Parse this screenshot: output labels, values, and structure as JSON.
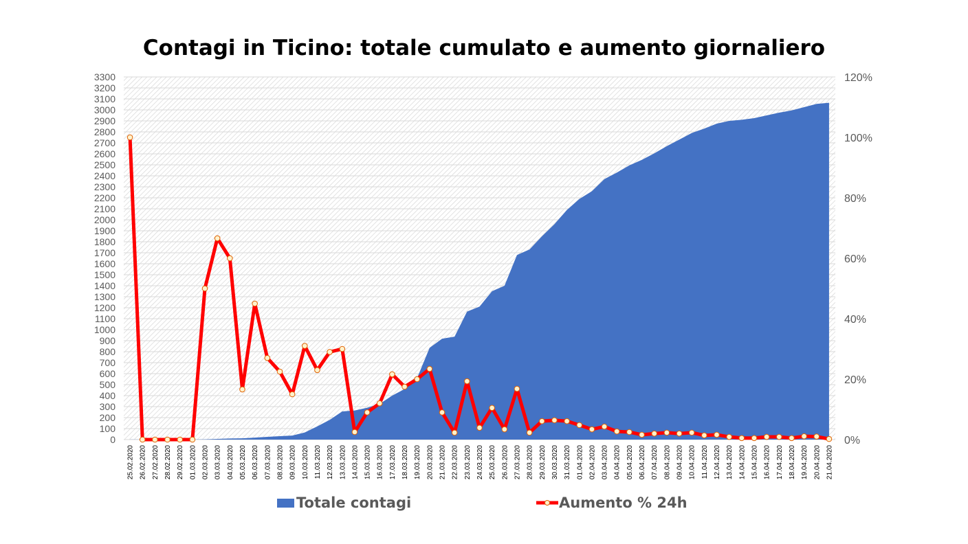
{
  "chart_data": {
    "type": "area+line",
    "title": "Contagi in Ticino: totale cumulato e aumento giornaliero",
    "categories": [
      "25.02.2020",
      "26.02.2020",
      "27.02.2020",
      "28.02.2020",
      "29.02.2020",
      "01.03.2020",
      "02.03.2020",
      "03.03.2020",
      "04.03.2020",
      "05.03.2020",
      "06.03.2020",
      "07.03.2020",
      "08.03.2020",
      "09.03.2020",
      "10.03.2020",
      "11.03.2020",
      "12.03.2020",
      "13.03.2020",
      "14.03.2020",
      "15.03.2020",
      "16.03.2020",
      "17.03.2020",
      "18.03.2020",
      "19.03.2020",
      "20.03.2020",
      "21.03.2020",
      "22.03.2020",
      "23.03.2020",
      "24.03.2020",
      "25.03.2020",
      "26.03.2020",
      "27.03.2020",
      "28.03.2020",
      "29.03.2020",
      "30.03.2020",
      "31.03.2020",
      "01.04.2020",
      "02.04.2020",
      "03.04.2020",
      "04.04.2020",
      "05.04.2020",
      "06.04.2020",
      "07.04.2020",
      "08.04.2020",
      "09.04.2020",
      "10.04.2020",
      "11.04.2020",
      "12.04.2020",
      "13.04.2020",
      "14.04.2020",
      "15.04.2020",
      "16.04.2020",
      "17.04.2020",
      "18.04.2020",
      "19.04.2020",
      "20.04.2020",
      "21.04.2020"
    ],
    "series": [
      {
        "name": "Totale contagi",
        "type": "area",
        "axis": "left",
        "color": "#4472C4",
        "values": [
          1,
          1,
          1,
          1,
          1,
          1,
          2,
          6,
          10,
          12,
          18,
          25,
          31,
          37,
          65,
          120,
          180,
          256,
          265,
          290,
          325,
          400,
          460,
          560,
          835,
          918,
          937,
          1165,
          1210,
          1350,
          1400,
          1680,
          1730,
          1850,
          1960,
          2090,
          2190,
          2260,
          2370,
          2430,
          2495,
          2545,
          2605,
          2670,
          2730,
          2790,
          2830,
          2875,
          2900,
          2910,
          2925,
          2950,
          2975,
          2995,
          3025,
          3055,
          3065
        ]
      },
      {
        "name": "Aumento % 24h",
        "type": "line",
        "axis": "right",
        "color": "#FF0000",
        "marker_color": "#FFF2CC",
        "values": [
          100,
          0,
          0,
          0,
          0,
          0,
          50,
          66.6,
          60,
          16.6,
          45,
          27,
          22.5,
          15,
          31,
          23,
          29,
          30,
          2.5,
          9,
          12,
          21.6,
          17.5,
          20,
          23.4,
          9,
          2.3,
          19.3,
          3.9,
          10.5,
          3.4,
          16.8,
          2.3,
          6.1,
          6.4,
          6.1,
          4.8,
          3.4,
          4.3,
          2.7,
          2.5,
          1.6,
          2,
          2.3,
          2,
          2.3,
          1.4,
          1.6,
          0.9,
          0.5,
          0.5,
          0.9,
          0.9,
          0.5,
          1.1,
          1,
          0.2
        ]
      }
    ],
    "y_left": {
      "range": [
        0,
        3300
      ],
      "step": 100
    },
    "y_right": {
      "range": [
        0,
        120
      ],
      "step": 20,
      "unit": "%"
    },
    "grid": true,
    "legend_placement": "bottom"
  }
}
